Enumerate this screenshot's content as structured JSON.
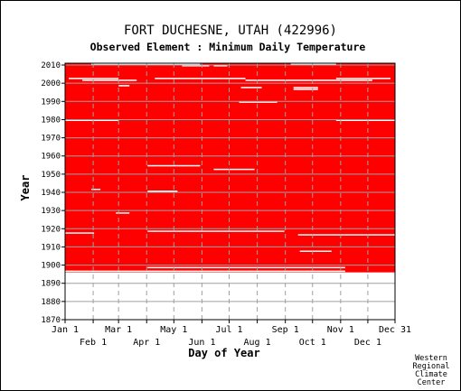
{
  "chart_data": {
    "type": "heatmap",
    "title": "FORT DUCHESNE, UTAH   (422996)",
    "subtitle": "Observed Element : Minimum Daily Temperature",
    "xlabel": "Day of Year",
    "ylabel": "Year",
    "x_ticks_top_row": [
      "Jan 1",
      "Mar 1",
      "May 1",
      "Jul 1",
      "Sep 1",
      "Nov 1",
      "Dec 31"
    ],
    "x_ticks_bottom_row": [
      "Feb 1",
      "Apr 1",
      "Jun 1",
      "Aug 1",
      "Oct 1",
      "Dec 1"
    ],
    "month_start_days": [
      1,
      32,
      60,
      91,
      121,
      152,
      182,
      213,
      244,
      274,
      305,
      335,
      365
    ],
    "y_ticks": [
      2010,
      2000,
      1990,
      1980,
      1970,
      1960,
      1950,
      1940,
      1930,
      1920,
      1910,
      1900,
      1890,
      1880,
      1870
    ],
    "xlim": [
      1,
      365
    ],
    "ylim": [
      1870,
      2011
    ],
    "grid": true,
    "data_color": "#ff0000",
    "observed_year_range": [
      1896,
      2010
    ],
    "missing_spans": [
      {
        "year": 2010,
        "start_day": 30,
        "end_day": 150
      },
      {
        "year": 2010,
        "start_day": 250,
        "end_day": 300
      },
      {
        "year": 2009,
        "start_day": 130,
        "end_day": 160
      },
      {
        "year": 2009,
        "start_day": 165,
        "end_day": 180
      },
      {
        "year": 2002,
        "start_day": 5,
        "end_day": 60
      },
      {
        "year": 2002,
        "start_day": 100,
        "end_day": 200
      },
      {
        "year": 2002,
        "start_day": 300,
        "end_day": 360
      },
      {
        "year": 2001,
        "start_day": 20,
        "end_day": 80
      },
      {
        "year": 2001,
        "start_day": 200,
        "end_day": 340
      },
      {
        "year": 1998,
        "start_day": 60,
        "end_day": 72
      },
      {
        "year": 1997,
        "start_day": 195,
        "end_day": 218
      },
      {
        "year": 1997,
        "start_day": 253,
        "end_day": 280
      },
      {
        "year": 1996,
        "start_day": 253,
        "end_day": 280
      },
      {
        "year": 1989,
        "start_day": 193,
        "end_day": 235
      },
      {
        "year": 1979,
        "start_day": 1,
        "end_day": 60
      },
      {
        "year": 1979,
        "start_day": 300,
        "end_day": 365
      },
      {
        "year": 1954,
        "start_day": 92,
        "end_day": 150
      },
      {
        "year": 1952,
        "start_day": 165,
        "end_day": 210
      },
      {
        "year": 1941,
        "start_day": 30,
        "end_day": 40
      },
      {
        "year": 1940,
        "start_day": 92,
        "end_day": 125
      },
      {
        "year": 1928,
        "start_day": 57,
        "end_day": 72
      },
      {
        "year": 1918,
        "start_day": 92,
        "end_day": 243
      },
      {
        "year": 1917,
        "start_day": 1,
        "end_day": 33
      },
      {
        "year": 1916,
        "start_day": 258,
        "end_day": 365
      },
      {
        "year": 1907,
        "start_day": 260,
        "end_day": 295
      },
      {
        "year": 1898,
        "start_day": 92,
        "end_day": 310
      },
      {
        "year": 1896,
        "start_day": 1,
        "end_day": 310
      }
    ]
  },
  "credit": [
    "Western",
    "Regional",
    "Climate",
    "Center"
  ]
}
